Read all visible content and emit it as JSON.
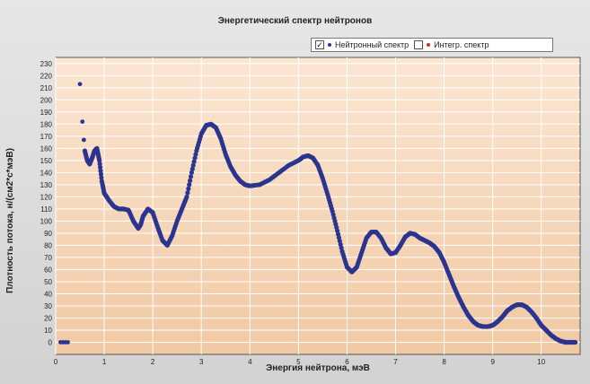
{
  "chart_data": {
    "type": "scatter",
    "title": "Энергетический спектр нейтронов",
    "xlabel": "Энергия нейтрона, мэВ",
    "ylabel": "Плотность потока, н/(см2*с*мэВ)",
    "xlim": [
      0,
      10.8
    ],
    "ylim": [
      -10,
      235
    ],
    "x_ticks": [
      "0",
      "1",
      "2",
      "3",
      "4",
      "5",
      "6",
      "7",
      "8",
      "9",
      "10"
    ],
    "y_ticks": [
      "0",
      "10",
      "20",
      "30",
      "40",
      "50",
      "60",
      "70",
      "80",
      "90",
      "100",
      "110",
      "120",
      "130",
      "140",
      "150",
      "160",
      "170",
      "180",
      "190",
      "200",
      "210",
      "220",
      "230"
    ],
    "grid": true,
    "legend_position": "top-right",
    "legend": [
      {
        "label": "Нейтронный спектр",
        "checked": true,
        "color": "#2b3590"
      },
      {
        "label": "Интегр. спектр",
        "checked": false,
        "color": "#c0392b"
      }
    ],
    "colors": {
      "plot_background_top": "#fbe6d2",
      "plot_background_bottom": "#f1c9a4",
      "series": "#2b3590"
    },
    "series": [
      {
        "name": "Нейтронный спектр",
        "scatter_points": [
          [
            0.1,
            0
          ],
          [
            0.15,
            0
          ],
          [
            0.2,
            0
          ],
          [
            0.25,
            0
          ],
          [
            0.5,
            213
          ],
          [
            0.55,
            182
          ],
          [
            0.58,
            167
          ]
        ],
        "curve": [
          [
            0.6,
            158
          ],
          [
            0.65,
            150
          ],
          [
            0.7,
            147
          ],
          [
            0.75,
            152
          ],
          [
            0.8,
            158
          ],
          [
            0.85,
            160
          ],
          [
            0.9,
            150
          ],
          [
            0.95,
            133
          ],
          [
            1.0,
            123
          ],
          [
            1.1,
            117
          ],
          [
            1.2,
            112
          ],
          [
            1.3,
            110
          ],
          [
            1.4,
            110
          ],
          [
            1.5,
            109
          ],
          [
            1.6,
            100
          ],
          [
            1.7,
            94
          ],
          [
            1.75,
            97
          ],
          [
            1.8,
            104
          ],
          [
            1.9,
            110
          ],
          [
            2.0,
            107
          ],
          [
            2.1,
            95
          ],
          [
            2.2,
            84
          ],
          [
            2.3,
            80
          ],
          [
            2.4,
            88
          ],
          [
            2.5,
            100
          ],
          [
            2.6,
            110
          ],
          [
            2.7,
            120
          ],
          [
            2.8,
            140
          ],
          [
            2.9,
            158
          ],
          [
            3.0,
            172
          ],
          [
            3.1,
            179
          ],
          [
            3.2,
            180
          ],
          [
            3.3,
            177
          ],
          [
            3.4,
            168
          ],
          [
            3.5,
            155
          ],
          [
            3.6,
            145
          ],
          [
            3.7,
            138
          ],
          [
            3.8,
            133
          ],
          [
            3.9,
            130
          ],
          [
            4.0,
            129
          ],
          [
            4.2,
            130
          ],
          [
            4.4,
            134
          ],
          [
            4.6,
            140
          ],
          [
            4.8,
            146
          ],
          [
            5.0,
            150
          ],
          [
            5.1,
            153
          ],
          [
            5.2,
            154
          ],
          [
            5.3,
            152
          ],
          [
            5.4,
            146
          ],
          [
            5.5,
            135
          ],
          [
            5.6,
            122
          ],
          [
            5.7,
            108
          ],
          [
            5.8,
            92
          ],
          [
            5.9,
            75
          ],
          [
            6.0,
            62
          ],
          [
            6.1,
            58
          ],
          [
            6.2,
            62
          ],
          [
            6.3,
            74
          ],
          [
            6.4,
            86
          ],
          [
            6.5,
            91
          ],
          [
            6.6,
            91
          ],
          [
            6.7,
            86
          ],
          [
            6.8,
            78
          ],
          [
            6.9,
            73
          ],
          [
            7.0,
            74
          ],
          [
            7.1,
            80
          ],
          [
            7.2,
            87
          ],
          [
            7.3,
            90
          ],
          [
            7.4,
            89
          ],
          [
            7.5,
            86
          ],
          [
            7.6,
            84
          ],
          [
            7.7,
            82
          ],
          [
            7.8,
            79
          ],
          [
            7.9,
            74
          ],
          [
            8.0,
            66
          ],
          [
            8.1,
            56
          ],
          [
            8.2,
            46
          ],
          [
            8.3,
            37
          ],
          [
            8.4,
            29
          ],
          [
            8.5,
            22
          ],
          [
            8.6,
            17
          ],
          [
            8.7,
            14
          ],
          [
            8.8,
            13
          ],
          [
            8.9,
            13
          ],
          [
            9.0,
            14
          ],
          [
            9.1,
            17
          ],
          [
            9.2,
            21
          ],
          [
            9.3,
            26
          ],
          [
            9.4,
            29
          ],
          [
            9.5,
            31
          ],
          [
            9.6,
            31
          ],
          [
            9.7,
            29
          ],
          [
            9.8,
            25
          ],
          [
            9.9,
            20
          ],
          [
            10.0,
            14
          ],
          [
            10.1,
            10
          ],
          [
            10.2,
            6
          ],
          [
            10.3,
            3
          ],
          [
            10.4,
            1
          ],
          [
            10.5,
            0
          ],
          [
            10.6,
            0
          ],
          [
            10.7,
            0
          ]
        ]
      }
    ]
  }
}
